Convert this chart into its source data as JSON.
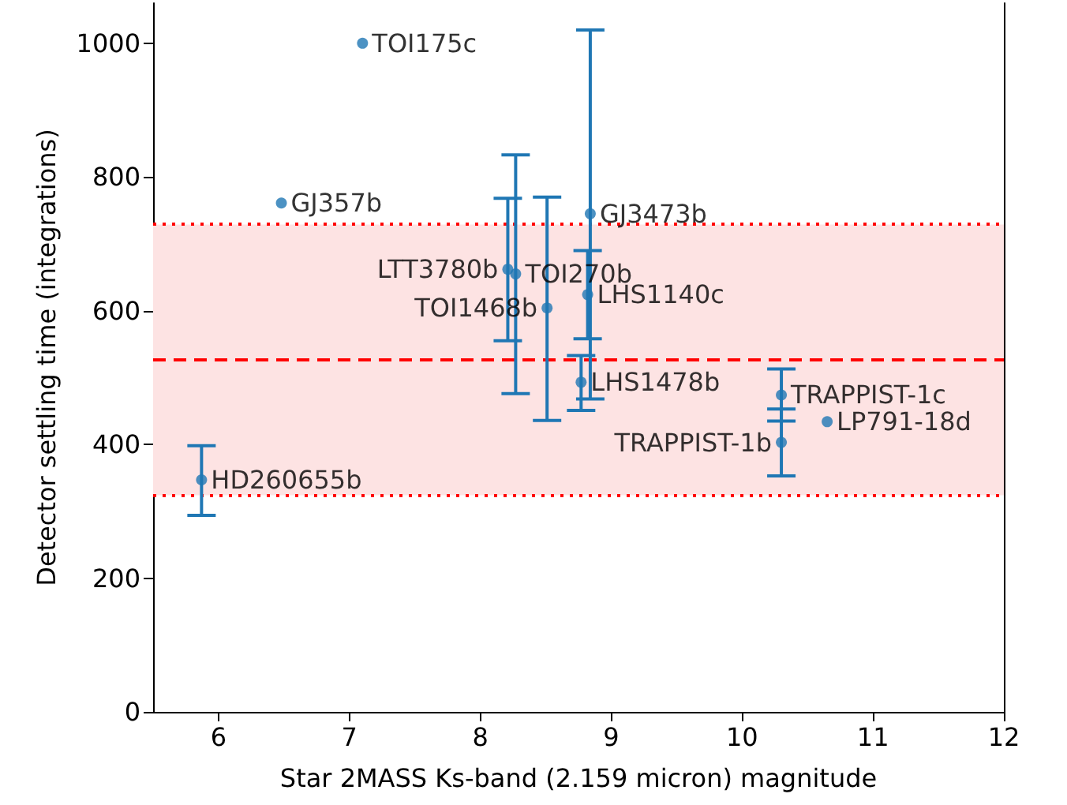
{
  "chart_data": {
    "type": "scatter",
    "xlabel": "Star 2MASS Ks-band (2.159 micron) magnitude",
    "ylabel": "Detector settling time (integrations)",
    "x": [
      5.87,
      6.48,
      7.1,
      8.21,
      8.27,
      8.51,
      8.84,
      8.82,
      8.77,
      10.3,
      10.3,
      10.65
    ],
    "series": [
      {
        "color": "#1f77b4",
        "values": [
          347,
          761,
          1000,
          662,
          655,
          604,
          745,
          624,
          493,
          474,
          403,
          434
        ],
        "errors": [
          [
            294,
            398
          ],
          null,
          null,
          [
            555,
            768
          ],
          [
            476,
            833
          ],
          [
            436,
            770
          ],
          [
            468,
            1020
          ],
          [
            558,
            690
          ],
          [
            451,
            533
          ],
          [
            435,
            513
          ],
          [
            353,
            453
          ],
          null
        ]
      }
    ],
    "annotations": [
      {
        "text": "HD260655b",
        "x": 5.87,
        "y": 347
      },
      {
        "text": "GJ357b",
        "x": 6.48,
        "y": 761
      },
      {
        "text": "TOI175c",
        "x": 7.1,
        "y": 1000
      },
      {
        "text": "LTT3780b",
        "x": 8.21,
        "y": 662
      },
      {
        "text": "TOI270b",
        "x": 8.27,
        "y": 655
      },
      {
        "text": "TOI1468b",
        "x": 8.51,
        "y": 604
      },
      {
        "text": "GJ3473b",
        "x": 8.84,
        "y": 745
      },
      {
        "text": "LHS1140c",
        "x": 8.82,
        "y": 624
      },
      {
        "text": "LHS1478b",
        "x": 8.77,
        "y": 493
      },
      {
        "text": "TRAPPIST-1c",
        "x": 10.3,
        "y": 474
      },
      {
        "text": "TRAPPIST-1b",
        "x": 10.3,
        "y": 403
      },
      {
        "text": "LP791-18d",
        "x": 10.65,
        "y": 434
      }
    ],
    "ref_lines": [
      {
        "axis": "y",
        "value": 729,
        "color": "#ff0000",
        "line_style": "dotted"
      },
      {
        "axis": "y",
        "value": 526,
        "color": "#ff0000",
        "line_style": "dashed"
      },
      {
        "axis": "y",
        "value": 324,
        "color": "#ff0000",
        "line_style": "dotted"
      }
    ],
    "bands": [
      {
        "axis": "y",
        "from": 324,
        "to": 729,
        "color": "#fde3e3"
      }
    ],
    "xlim": [
      5.5,
      12
    ],
    "xticks": [
      6,
      7,
      8,
      9,
      10,
      11,
      12
    ],
    "ylim": [
      0,
      1060
    ],
    "yticks": [
      0,
      200,
      400,
      600,
      800,
      1000
    ],
    "marker": "circle",
    "grid": false
  }
}
